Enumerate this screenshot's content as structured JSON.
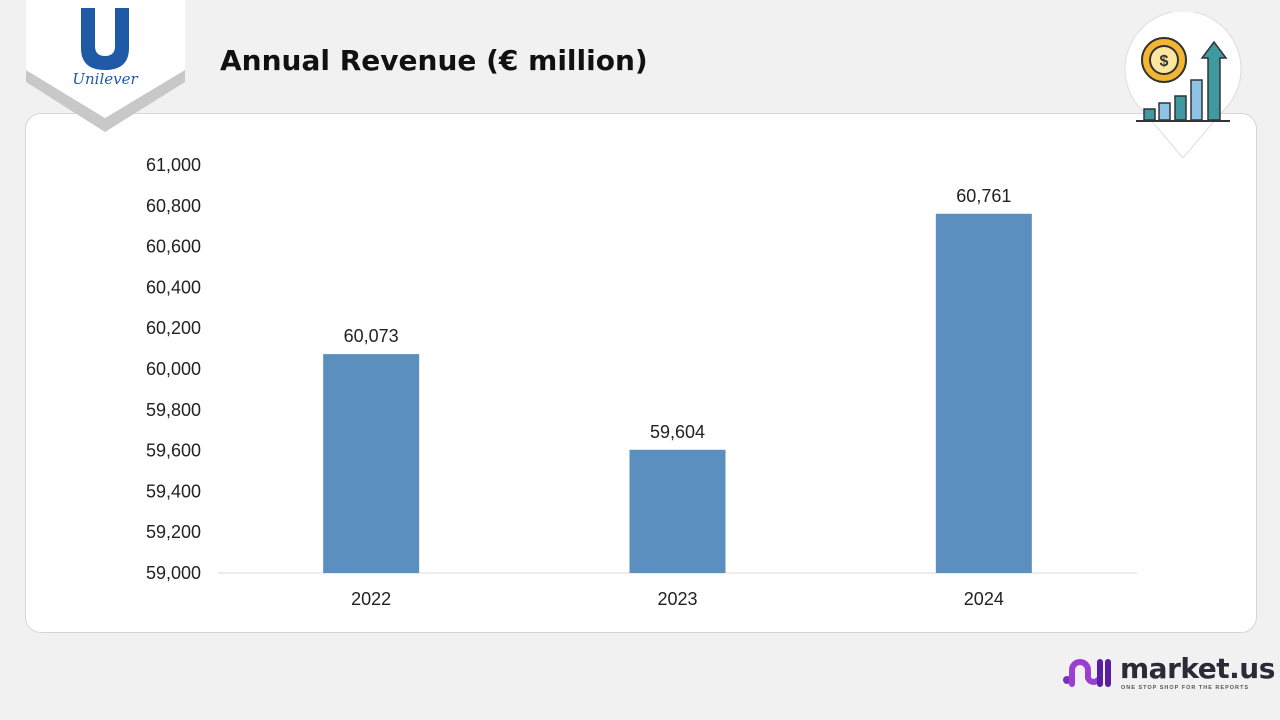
{
  "header": {
    "title": "Annual Revenue (€ million)",
    "brand_logo_text": "Unilever"
  },
  "footer": {
    "brand": "market.us",
    "tagline": "ONE STOP SHOP FOR THE REPORTS"
  },
  "colors": {
    "bar": "#5a8fc0",
    "unilever_blue": "#1f5aa6",
    "accent": "#7b2fbe"
  },
  "chart_data": {
    "type": "bar",
    "title": "Annual Revenue (€ million)",
    "xlabel": "",
    "ylabel": "",
    "categories": [
      "2022",
      "2023",
      "2024"
    ],
    "values": [
      60073,
      59604,
      60761
    ],
    "value_labels": [
      "60,073",
      "59,604",
      "60,761"
    ],
    "ylim": [
      59000,
      61000
    ],
    "yticks": [
      59000,
      59200,
      59400,
      59600,
      59800,
      60000,
      60200,
      60400,
      60600,
      60800,
      61000
    ],
    "ytick_labels": [
      "59,000",
      "59,200",
      "59,400",
      "59,600",
      "59,800",
      "60,000",
      "60,200",
      "60,400",
      "60,600",
      "60,800",
      "61,000"
    ],
    "grid": false,
    "legend": "none"
  }
}
